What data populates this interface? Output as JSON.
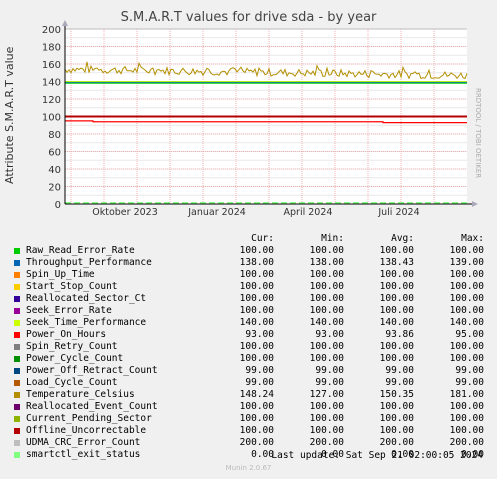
{
  "title": "S.M.A.R.T values for drive sda - by year",
  "side_label": "RRDTOOL / TOBI OETIKER",
  "footer": "Munin 2.0.67",
  "last_update": "Last update: Sat Sep 21 02:00:05 2024",
  "legend_headers": [
    "Cur:",
    "Min:",
    "Avg:",
    "Max:"
  ],
  "chart_data": {
    "type": "line",
    "title": "S.M.A.R.T values for drive sda - by year",
    "ylabel": "Attribute S.M.A.R.T value",
    "ylim": [
      0,
      200
    ],
    "yticks": [
      0,
      20,
      40,
      60,
      80,
      100,
      120,
      140,
      160,
      180,
      200
    ],
    "xticks": [
      "Oktober 2023",
      "Januar 2024",
      "April 2024",
      "Juli 2024"
    ],
    "grid": true,
    "series": [
      {
        "name": "Raw_Read_Error_Rate",
        "color": "#00cc00",
        "cur": "100.00",
        "min": "100.00",
        "avg": "100.00",
        "max": "100.00"
      },
      {
        "name": "Throughput_Performance",
        "color": "#0066b3",
        "cur": "138.00",
        "min": "138.00",
        "avg": "138.43",
        "max": "139.00"
      },
      {
        "name": "Spin_Up_Time",
        "color": "#ff8000",
        "cur": "100.00",
        "min": "100.00",
        "avg": "100.00",
        "max": "100.00"
      },
      {
        "name": "Start_Stop_Count",
        "color": "#ffcc00",
        "cur": "100.00",
        "min": "100.00",
        "avg": "100.00",
        "max": "100.00"
      },
      {
        "name": "Reallocated_Sector_Ct",
        "color": "#330099",
        "cur": "100.00",
        "min": "100.00",
        "avg": "100.00",
        "max": "100.00"
      },
      {
        "name": "Seek_Error_Rate",
        "color": "#990099",
        "cur": "100.00",
        "min": "100.00",
        "avg": "100.00",
        "max": "100.00"
      },
      {
        "name": "Seek_Time_Performance",
        "color": "#ccff00",
        "cur": "140.00",
        "min": "140.00",
        "avg": "140.00",
        "max": "140.00"
      },
      {
        "name": "Power_On_Hours",
        "color": "#ff0000",
        "cur": "93.00",
        "min": "93.00",
        "avg": "93.86",
        "max": "95.00"
      },
      {
        "name": "Spin_Retry_Count",
        "color": "#808080",
        "cur": "100.00",
        "min": "100.00",
        "avg": "100.00",
        "max": "100.00"
      },
      {
        "name": "Power_Cycle_Count",
        "color": "#008f00",
        "cur": "100.00",
        "min": "100.00",
        "avg": "100.00",
        "max": "100.00"
      },
      {
        "name": "Power_Off_Retract_Count",
        "color": "#00487d",
        "cur": "99.00",
        "min": "99.00",
        "avg": "99.00",
        "max": "99.00"
      },
      {
        "name": "Load_Cycle_Count",
        "color": "#b35a00",
        "cur": "99.00",
        "min": "99.00",
        "avg": "99.00",
        "max": "99.00"
      },
      {
        "name": "Temperature_Celsius",
        "color": "#b38f00",
        "cur": "148.24",
        "min": "127.00",
        "avg": "150.35",
        "max": "181.00"
      },
      {
        "name": "Reallocated_Event_Count",
        "color": "#6b006b",
        "cur": "100.00",
        "min": "100.00",
        "avg": "100.00",
        "max": "100.00"
      },
      {
        "name": "Current_Pending_Sector",
        "color": "#8fb300",
        "cur": "100.00",
        "min": "100.00",
        "avg": "100.00",
        "max": "100.00"
      },
      {
        "name": "Offline_Uncorrectable",
        "color": "#b30000",
        "cur": "100.00",
        "min": "100.00",
        "avg": "100.00",
        "max": "100.00"
      },
      {
        "name": "UDMA_CRC_Error_Count",
        "color": "#bebebe",
        "cur": "200.00",
        "min": "200.00",
        "avg": "200.00",
        "max": "200.00"
      },
      {
        "name": "smartctl_exit_status",
        "color": "#80ff80",
        "cur": "0.00",
        "min": "0.00",
        "avg": "0.00",
        "max": "0.00"
      }
    ]
  }
}
